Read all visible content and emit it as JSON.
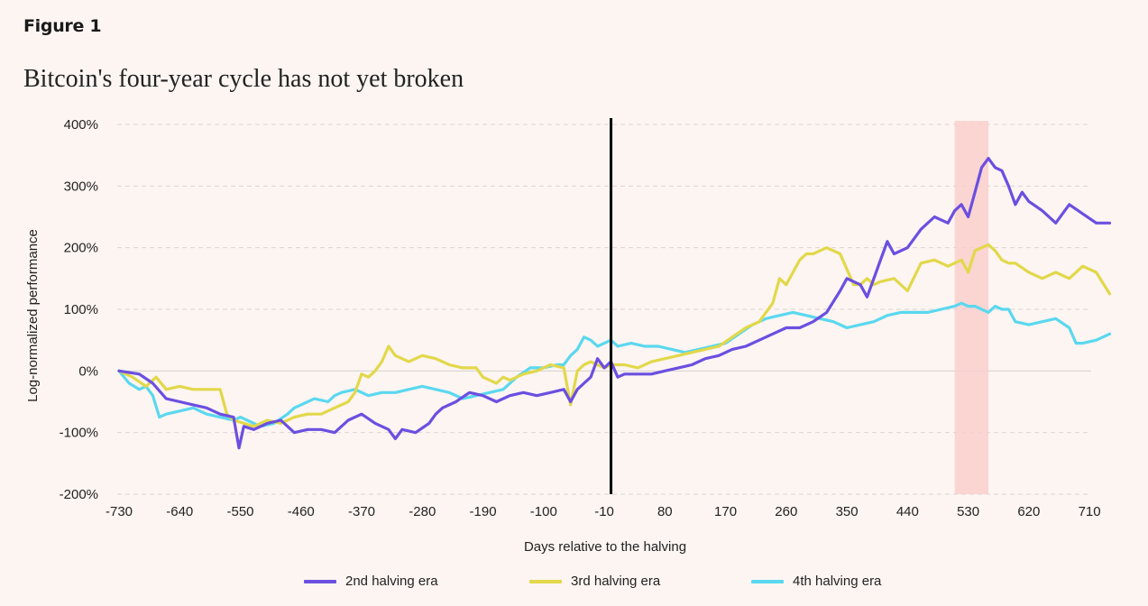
{
  "figure_label": "Figure 1",
  "title": "Bitcoin's four-year cycle has not yet broken",
  "chart_data": {
    "type": "line",
    "title": "Bitcoin's four-year cycle has not yet broken",
    "xlabel": "Days relative to the halving",
    "ylabel": "Log-normalized performance",
    "xlim": [
      -730,
      750
    ],
    "ylim": [
      -200,
      400
    ],
    "x_ticks": [
      -730,
      -640,
      -550,
      -460,
      -370,
      -280,
      -190,
      -100,
      -10,
      80,
      170,
      260,
      350,
      440,
      530,
      620,
      710
    ],
    "x_tick_labels": [
      "-730",
      "-640",
      "-550",
      "-460",
      "-370",
      "-280",
      "-190",
      "-100",
      "-10",
      "80",
      "170",
      "260",
      "350",
      "440",
      "530",
      "620",
      "710"
    ],
    "y_ticks": [
      -200,
      -100,
      0,
      100,
      200,
      300,
      400
    ],
    "y_tick_labels": [
      "-200%",
      "-100%",
      "0%",
      "100%",
      "200%",
      "300%",
      "400%"
    ],
    "grid": "horizontal dashed",
    "halving_line_x": 0,
    "highlight_band": [
      510,
      560
    ],
    "legend_position": "bottom",
    "series": [
      {
        "name": "2nd halving era",
        "color": "#6b4fe0",
        "x": [
          -730,
          -700,
          -680,
          -660,
          -640,
          -620,
          -600,
          -580,
          -560,
          -552,
          -545,
          -530,
          -510,
          -490,
          -470,
          -450,
          -430,
          -410,
          -390,
          -370,
          -350,
          -330,
          -320,
          -310,
          -290,
          -270,
          -260,
          -250,
          -230,
          -210,
          -190,
          -170,
          -150,
          -130,
          -110,
          -90,
          -70,
          -60,
          -50,
          -40,
          -30,
          -20,
          -10,
          0,
          10,
          20,
          40,
          60,
          80,
          100,
          120,
          140,
          160,
          180,
          200,
          220,
          240,
          260,
          280,
          300,
          320,
          340,
          350,
          360,
          370,
          380,
          390,
          400,
          410,
          420,
          440,
          460,
          480,
          500,
          510,
          520,
          530,
          540,
          550,
          560,
          570,
          580,
          590,
          600,
          610,
          620,
          640,
          660,
          680,
          700,
          720,
          740
        ],
        "y": [
          0,
          -5,
          -20,
          -45,
          -50,
          -55,
          -60,
          -70,
          -75,
          -125,
          -90,
          -95,
          -85,
          -80,
          -100,
          -95,
          -95,
          -100,
          -80,
          -70,
          -85,
          -95,
          -110,
          -95,
          -100,
          -85,
          -70,
          -60,
          -50,
          -35,
          -40,
          -50,
          -40,
          -35,
          -40,
          -35,
          -30,
          -50,
          -30,
          -20,
          -10,
          20,
          5,
          15,
          -10,
          -5,
          -5,
          -5,
          0,
          5,
          10,
          20,
          25,
          35,
          40,
          50,
          60,
          70,
          70,
          80,
          95,
          130,
          150,
          145,
          140,
          120,
          150,
          180,
          210,
          190,
          200,
          230,
          250,
          240,
          260,
          270,
          250,
          290,
          330,
          345,
          330,
          325,
          300,
          270,
          290,
          275,
          260,
          240,
          270,
          255,
          240,
          240
        ]
      },
      {
        "name": "3rd halving era",
        "color": "#e2d84a",
        "x": [
          -730,
          -710,
          -690,
          -675,
          -660,
          -640,
          -620,
          -600,
          -580,
          -570,
          -560,
          -545,
          -530,
          -510,
          -490,
          -470,
          -450,
          -430,
          -410,
          -390,
          -380,
          -370,
          -360,
          -350,
          -340,
          -330,
          -320,
          -300,
          -280,
          -260,
          -240,
          -220,
          -200,
          -190,
          -180,
          -170,
          -160,
          -150,
          -130,
          -110,
          -90,
          -70,
          -60,
          -50,
          -40,
          -30,
          -20,
          -10,
          0,
          10,
          20,
          40,
          60,
          80,
          100,
          120,
          140,
          160,
          180,
          200,
          220,
          240,
          250,
          260,
          270,
          280,
          290,
          300,
          310,
          320,
          340,
          360,
          370,
          380,
          390,
          400,
          420,
          440,
          460,
          480,
          500,
          520,
          530,
          540,
          550,
          560,
          570,
          580,
          590,
          600,
          620,
          640,
          660,
          680,
          700,
          720,
          740
        ],
        "y": [
          0,
          -10,
          -25,
          -10,
          -30,
          -25,
          -30,
          -30,
          -30,
          -70,
          -80,
          -85,
          -90,
          -80,
          -85,
          -75,
          -70,
          -70,
          -60,
          -50,
          -35,
          -5,
          -10,
          0,
          15,
          40,
          25,
          15,
          25,
          20,
          10,
          5,
          5,
          -10,
          -15,
          -20,
          -10,
          -15,
          -5,
          0,
          10,
          5,
          -55,
          0,
          10,
          15,
          10,
          5,
          10,
          10,
          10,
          5,
          15,
          20,
          25,
          30,
          35,
          40,
          55,
          70,
          80,
          110,
          150,
          140,
          160,
          180,
          190,
          190,
          195,
          200,
          190,
          140,
          140,
          150,
          140,
          145,
          150,
          130,
          175,
          180,
          170,
          180,
          160,
          195,
          200,
          205,
          195,
          180,
          175,
          175,
          160,
          150,
          160,
          150,
          170,
          160,
          125
        ]
      },
      {
        "name": "4th halving era",
        "color": "#5ad8ef",
        "x": [
          -730,
          -715,
          -700,
          -690,
          -680,
          -670,
          -660,
          -640,
          -620,
          -600,
          -580,
          -560,
          -550,
          -540,
          -520,
          -500,
          -480,
          -470,
          -460,
          -440,
          -420,
          -410,
          -400,
          -380,
          -360,
          -340,
          -320,
          -300,
          -280,
          -260,
          -240,
          -220,
          -200,
          -180,
          -160,
          -140,
          -120,
          -100,
          -80,
          -70,
          -60,
          -50,
          -40,
          -30,
          -20,
          -10,
          0,
          10,
          30,
          50,
          70,
          90,
          110,
          130,
          150,
          170,
          190,
          210,
          230,
          250,
          270,
          290,
          310,
          330,
          350,
          370,
          390,
          410,
          430,
          450,
          470,
          490,
          510,
          520,
          530,
          540,
          550,
          560,
          570,
          580,
          590,
          600,
          620,
          640,
          660,
          680,
          690,
          700,
          720,
          740
        ],
        "y": [
          0,
          -20,
          -30,
          -25,
          -40,
          -75,
          -70,
          -65,
          -60,
          -70,
          -75,
          -80,
          -75,
          -80,
          -90,
          -85,
          -70,
          -60,
          -55,
          -45,
          -50,
          -40,
          -35,
          -30,
          -40,
          -35,
          -35,
          -30,
          -25,
          -30,
          -35,
          -45,
          -40,
          -35,
          -30,
          -10,
          5,
          5,
          10,
          10,
          25,
          35,
          55,
          50,
          40,
          45,
          50,
          40,
          45,
          40,
          40,
          35,
          30,
          35,
          40,
          45,
          60,
          75,
          85,
          90,
          95,
          90,
          85,
          80,
          70,
          75,
          80,
          90,
          95,
          95,
          95,
          100,
          105,
          110,
          105,
          105,
          100,
          95,
          105,
          100,
          100,
          80,
          75,
          80,
          85,
          70,
          45,
          45,
          50,
          60
        ]
      }
    ]
  }
}
